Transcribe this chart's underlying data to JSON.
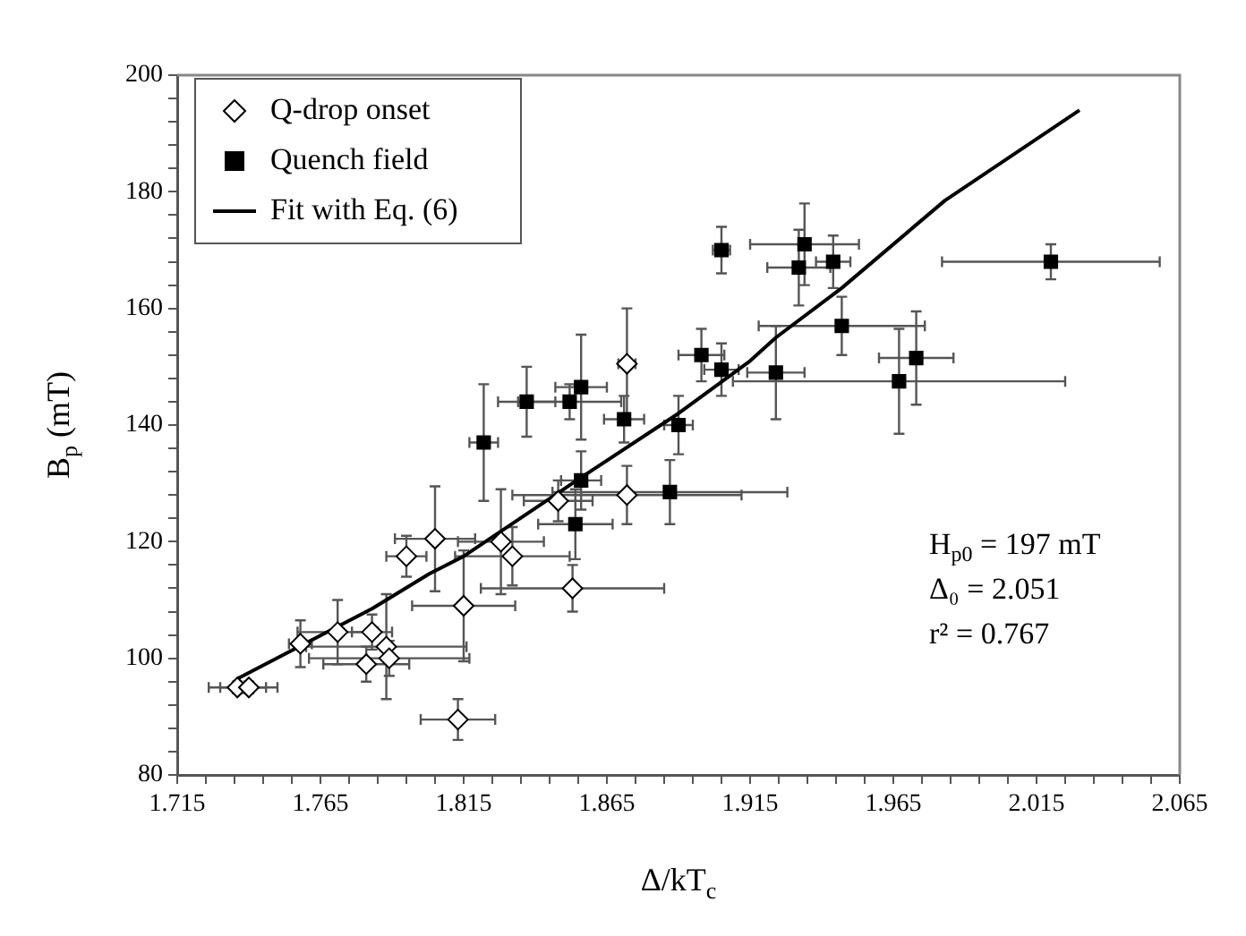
{
  "chart_data": {
    "type": "scatter",
    "xlabel": "Δ/kT$_{c}$",
    "ylabel": "B$_{p}$ (mT)",
    "xlim": [
      1.715,
      2.065
    ],
    "ylim": [
      80,
      200
    ],
    "xticks": [
      1.715,
      {
        "value": 1.725,
        "label": null
      },
      {
        "value": 1.735,
        "label": null
      },
      {
        "value": 1.745,
        "label": null
      },
      {
        "value": 1.755,
        "label": null
      },
      1.765,
      {
        "value": 1.775,
        "label": null
      },
      {
        "value": 1.785,
        "label": null
      },
      {
        "value": 1.795,
        "label": null
      },
      {
        "value": 1.805,
        "label": null
      },
      1.815,
      {
        "value": 1.825,
        "label": null
      },
      {
        "value": 1.835,
        "label": null
      },
      {
        "value": 1.845,
        "label": null
      },
      {
        "value": 1.855,
        "label": null
      },
      1.865,
      {
        "value": 1.875,
        "label": null
      },
      {
        "value": 1.885,
        "label": null
      },
      {
        "value": 1.895,
        "label": null
      },
      {
        "value": 1.905,
        "label": null
      },
      1.915,
      {
        "value": 1.925,
        "label": null
      },
      {
        "value": 1.935,
        "label": null
      },
      {
        "value": 1.945,
        "label": null
      },
      {
        "value": 1.955,
        "label": null
      },
      1.965,
      {
        "value": 1.975,
        "label": null
      },
      {
        "value": 1.985,
        "label": null
      },
      {
        "value": 1.995,
        "label": null
      },
      {
        "value": 2.005,
        "label": null
      },
      2.015,
      {
        "value": 2.025,
        "label": null
      },
      {
        "value": 2.035,
        "label": null
      },
      {
        "value": 2.045,
        "label": null
      },
      {
        "value": 2.055,
        "label": null
      },
      2.065
    ],
    "yticks": [
      80,
      {
        "value": 84,
        "label": null
      },
      {
        "value": 88,
        "label": null
      },
      {
        "value": 92,
        "label": null
      },
      {
        "value": 96,
        "label": null
      },
      100,
      {
        "value": 104,
        "label": null
      },
      {
        "value": 108,
        "label": null
      },
      {
        "value": 112,
        "label": null
      },
      {
        "value": 116,
        "label": null
      },
      120,
      {
        "value": 124,
        "label": null
      },
      {
        "value": 128,
        "label": null
      },
      {
        "value": 132,
        "label": null
      },
      {
        "value": 136,
        "label": null
      },
      140,
      {
        "value": 144,
        "label": null
      },
      {
        "value": 148,
        "label": null
      },
      {
        "value": 152,
        "label": null
      },
      {
        "value": 156,
        "label": null
      },
      160,
      {
        "value": 164,
        "label": null
      },
      {
        "value": 168,
        "label": null
      },
      {
        "value": 172,
        "label": null
      },
      {
        "value": 176,
        "label": null
      },
      180,
      {
        "value": 184,
        "label": null
      },
      {
        "value": 188,
        "label": null
      },
      {
        "value": 192,
        "label": null
      },
      {
        "value": 196,
        "label": null
      },
      200
    ],
    "legend": "top left",
    "grid": false,
    "annotations": [
      "H$_{p0}$ = 197 mT",
      "Δ₀ = 2.051",
      "r² = 0.767"
    ],
    "series": [
      {
        "name": "Q-drop onset",
        "marker": "diamond",
        "color": "#ffffff",
        "x": [
          1.736,
          1.74,
          1.758,
          1.771,
          1.783,
          1.781,
          1.788,
          1.789,
          1.805,
          1.795,
          1.815,
          1.813,
          1.828,
          1.832,
          1.848,
          1.853,
          1.872,
          1.872
        ],
        "values": [
          95,
          95,
          102.5,
          104.5,
          104.5,
          99,
          102,
          100,
          120.5,
          117.5,
          109,
          89.5,
          120,
          117.5,
          127,
          112,
          150.5,
          128
        ],
        "errors": [
          1,
          1,
          4,
          5.5,
          3,
          3,
          9,
          3,
          9,
          3.5,
          9.5,
          3.5,
          9,
          5,
          3.5,
          4,
          9.5,
          5
        ],
        "xerrors": [
          0.01,
          0.01,
          0.004,
          0.014,
          0.007,
          0.015,
          0.028,
          0.028,
          0.014,
          0.007,
          0.018,
          0.013,
          0.015,
          0.02,
          0.012,
          0.032,
          0.003,
          0.04
        ]
      },
      {
        "name": "Quench field",
        "marker": "square",
        "color": "#000000",
        "x": [
          1.905,
          1.898,
          1.905,
          1.89,
          1.871,
          1.856,
          1.852,
          1.837,
          1.822,
          1.856,
          1.854,
          1.887,
          1.934,
          1.932,
          1.944,
          1.947,
          1.924,
          1.967,
          1.973,
          2.02
        ],
        "values": [
          170,
          152,
          149.5,
          140,
          141,
          146.5,
          144,
          144,
          137,
          130.5,
          123,
          128.5,
          171,
          167,
          168,
          157,
          149,
          147.5,
          151.5,
          168
        ],
        "errors": [
          4,
          4.5,
          4.5,
          5,
          4,
          9,
          3,
          6,
          10,
          5,
          6,
          5.5,
          7,
          6.5,
          4.5,
          5,
          8,
          9,
          8,
          3
        ],
        "xerrors": [
          0.003,
          0.008,
          0.006,
          0.005,
          0.007,
          0.009,
          0.018,
          0.01,
          0.005,
          0.007,
          0.013,
          0.041,
          0.019,
          0.011,
          0.006,
          0.029,
          0.01,
          0.058,
          0.013,
          0.038
        ]
      },
      {
        "name": "Fit with Eq. (6)",
        "type": "line",
        "marker": "none",
        "line_style": "solid",
        "color": "#000000",
        "x": [
          1.736,
          1.783,
          1.803,
          1.815,
          1.856,
          1.89,
          1.915,
          1.924,
          1.947,
          1.983,
          2.03
        ],
        "values": [
          96.5,
          108.5,
          114.5,
          117.5,
          131,
          142,
          151,
          155,
          163.5,
          178.5,
          194
        ]
      }
    ]
  }
}
